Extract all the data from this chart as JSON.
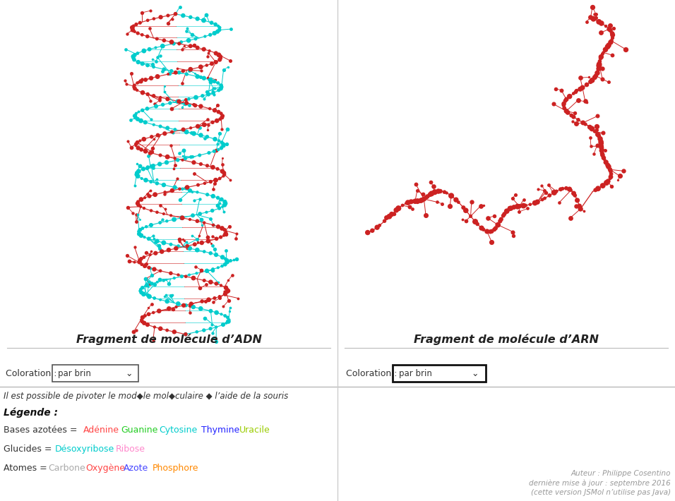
{
  "title_adn": "Fragment de molécule d’ADN",
  "title_arn": "Fragment de molécule d’ARN",
  "coloration_label": "Coloration : ",
  "coloration_value": "par brin",
  "info_text": "Il est possible de pivoter le mod◆le mol◆culaire ◆ l’aide de la souris",
  "legende_title": "Légende :",
  "bases_label": "Bases azotées = ",
  "bases": [
    {
      "name": "Adénine",
      "color": "#FF4444"
    },
    {
      "name": "Guanine",
      "color": "#22CC22"
    },
    {
      "name": "Cytosine",
      "color": "#00CCCC"
    },
    {
      "name": "Thymine",
      "color": "#2222FF"
    },
    {
      "name": "Uracile",
      "color": "#99CC00"
    }
  ],
  "glucides_label": "Glucides = ",
  "glucides": [
    {
      "name": "Désoxyribose",
      "color": "#00CCCC"
    },
    {
      "name": "Ribose",
      "color": "#FF88CC"
    }
  ],
  "atomes_label": "Atomes = ",
  "atomes": [
    {
      "name": "Carbone",
      "color": "#AAAAAA"
    },
    {
      "name": "Oxygène",
      "color": "#FF4444"
    },
    {
      "name": "Azote",
      "color": "#4444FF"
    },
    {
      "name": "Phosphore",
      "color": "#FF8800"
    }
  ],
  "author_text": "Auteur : Philippe Cosentino\ndernière mise à jour : septembre 2016\n(cette version JSMol n’utilise pas Java)",
  "bg_color": "#FFFFFF",
  "adn_color1": "#00CCCC",
  "adn_color2": "#CC2222",
  "arn_color": "#CC2222"
}
